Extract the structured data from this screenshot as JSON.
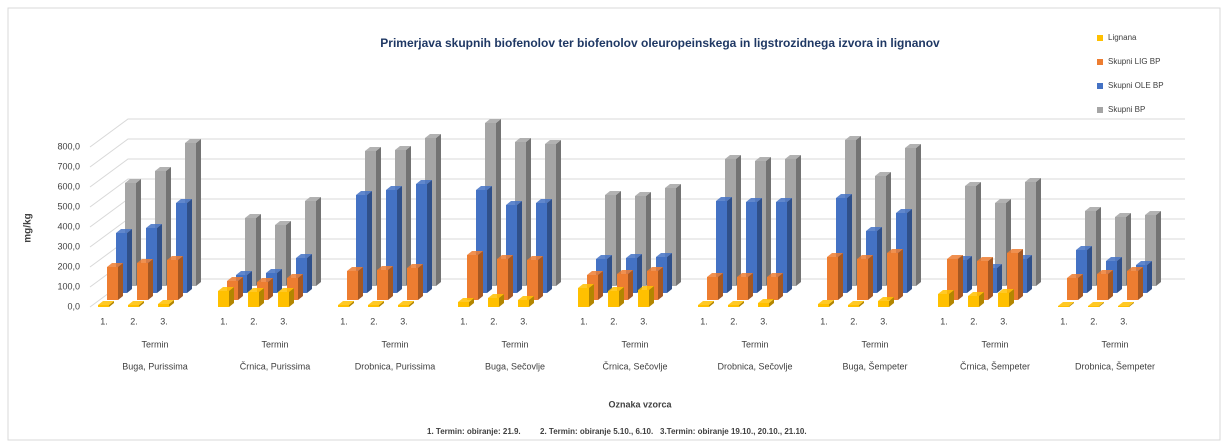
{
  "chart_data": {
    "type": "bar3d",
    "title": "Primerjava skupnih biofenolov ter biofenolov oleuropeinskega in ligstrozidnega izvora in lignanov",
    "y_label": "mg/kg",
    "x_label": "Oznaka vzorca",
    "group_label": "Termin",
    "terms": [
      "1.",
      "2.",
      "3."
    ],
    "groups": [
      "Buga, Purissima",
      "Črnica, Purissima",
      "Drobnica, Purissima",
      "Buga, Sečovlje",
      "Črnica, Sečovlje",
      "Drobnica, Sečovlje",
      "Buga, Šempeter",
      "Črnica, Šempeter",
      "Drobnica, Šempeter"
    ],
    "footnote": [
      "1. Termin: obiranje: 21.9.",
      "2. Termin: obiranje 5.10., 6.10.",
      "3.Termin: obiranje 19.10., 20.10., 21.10."
    ],
    "ylim": [
      0,
      800
    ],
    "yticks": [
      {
        "value": 0,
        "label": "0,0"
      },
      {
        "value": 100,
        "label": "100,0"
      },
      {
        "value": 200,
        "label": "200,0"
      },
      {
        "value": 300,
        "label": "300,0"
      },
      {
        "value": 400,
        "label": "400,0"
      },
      {
        "value": 500,
        "label": "500,0"
      },
      {
        "value": 600,
        "label": "600,0"
      },
      {
        "value": 700,
        "label": "700,0"
      },
      {
        "value": 800,
        "label": "800,0"
      }
    ],
    "grid": true,
    "legend": "right",
    "series": [
      {
        "name": "Lignana",
        "color": "#ffc000",
        "values": [
          10,
          10,
          15,
          80,
          75,
          75,
          10,
          10,
          10,
          25,
          45,
          35,
          95,
          80,
          85,
          10,
          10,
          20,
          15,
          10,
          30,
          65,
          55,
          70,
          5,
          5,
          5
        ]
      },
      {
        "name": "Skupni LIG BP",
        "color": "#ed7d31",
        "values": [
          165,
          185,
          200,
          95,
          90,
          110,
          145,
          150,
          160,
          225,
          205,
          200,
          125,
          130,
          145,
          115,
          115,
          115,
          215,
          205,
          235,
          205,
          195,
          235,
          110,
          130,
          145
        ]
      },
      {
        "name": "Skupni OLE BP",
        "color": "#4472c4",
        "values": [
          300,
          325,
          450,
          90,
          100,
          175,
          490,
          515,
          545,
          515,
          440,
          450,
          170,
          175,
          180,
          460,
          455,
          455,
          475,
          310,
          400,
          165,
          125,
          170,
          215,
          160,
          140
        ]
      },
      {
        "name": "Skupni BP",
        "color": "#a5a5a5",
        "values": [
          515,
          575,
          715,
          340,
          305,
          425,
          675,
          680,
          740,
          815,
          720,
          710,
          455,
          450,
          490,
          635,
          625,
          635,
          730,
          550,
          690,
          500,
          415,
          520,
          375,
          345,
          355
        ]
      }
    ]
  }
}
